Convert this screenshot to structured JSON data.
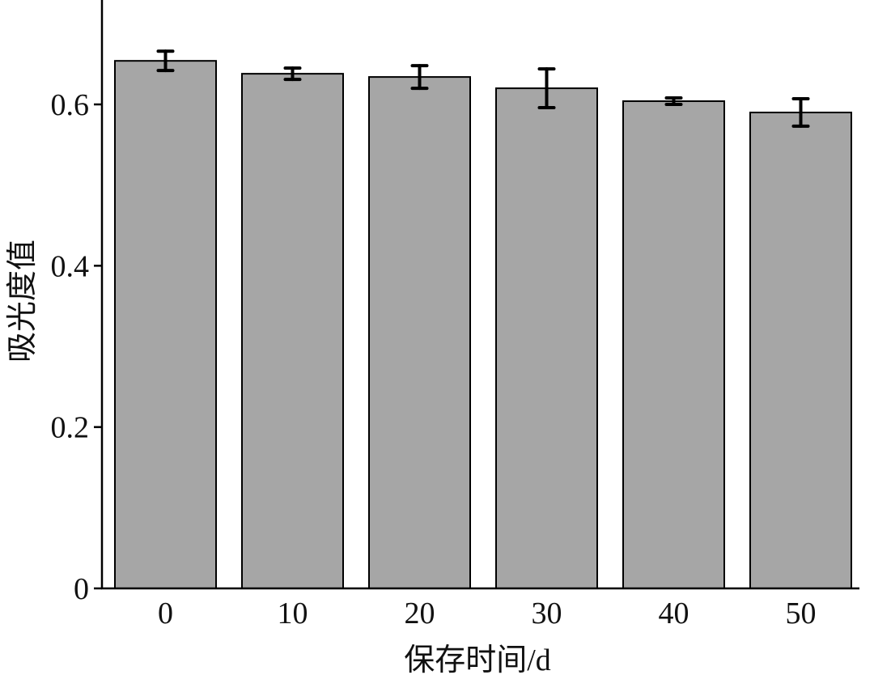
{
  "chart_data": {
    "type": "bar",
    "categories": [
      "0",
      "10",
      "20",
      "30",
      "40",
      "50"
    ],
    "values": [
      0.654,
      0.638,
      0.634,
      0.62,
      0.604,
      0.59
    ],
    "errors": [
      0.012,
      0.007,
      0.014,
      0.024,
      0.004,
      0.017
    ],
    "xlabel": "保存时间/d",
    "ylabel": "吸光度值",
    "ylim": [
      0,
      0.72
    ],
    "yticks": [
      0,
      0.2,
      0.4,
      0.6
    ],
    "ytick_labels": [
      "0",
      "0.2",
      "0.4",
      "0.6"
    ],
    "grid": false,
    "bar_color": "#a6a6a6",
    "bar_edge_color": "#000000",
    "error_bar_color": "#000000"
  }
}
